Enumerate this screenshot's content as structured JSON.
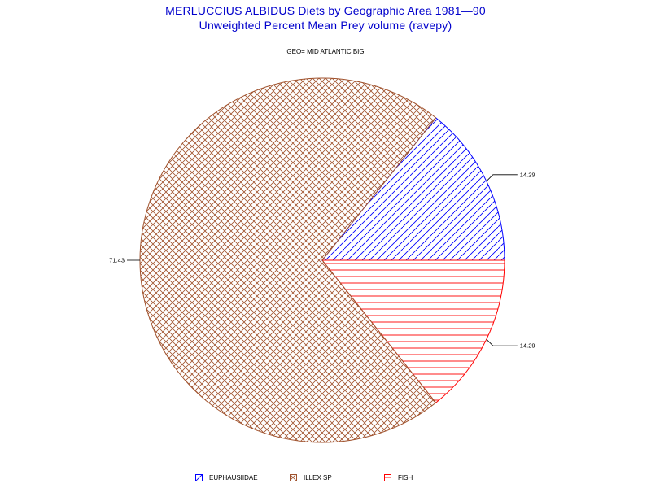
{
  "title_line1": "MERLUCCIUS ALBIDUS Diets by Geographic Area 1981—90",
  "title_line2": "Unweighted Percent Mean Prey volume (ravepy)",
  "subtitle": "GEO= MID ATLANTIC BIG",
  "chart_data": {
    "type": "pie",
    "title": "MERLUCCIUS ALBIDUS Diets by Geographic Area 1981—90",
    "subtitle": "Unweighted Percent Mean Prey volume (ravepy)",
    "slices": [
      {
        "name": "EUPHAUSIIDAE",
        "value": 14.29,
        "label": "14.29",
        "color": "#0000ff",
        "pattern": "diagonal"
      },
      {
        "name": "FISH",
        "value": 14.29,
        "label": "14.29",
        "color": "#ff0000",
        "pattern": "horizontal"
      },
      {
        "name": "ILLEX SP",
        "value": 71.43,
        "label": "71.43",
        "color": "#a0522d",
        "pattern": "crosshatch"
      }
    ],
    "legend_placement": "bottom"
  }
}
